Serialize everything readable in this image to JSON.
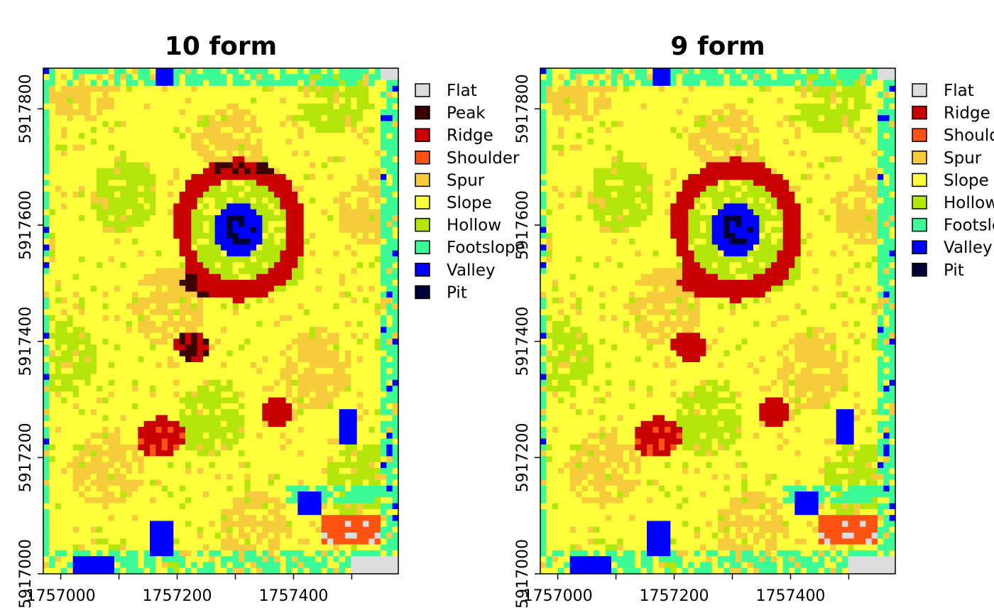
{
  "panels": [
    {
      "title": "10 form",
      "legend": [
        {
          "label": "Flat",
          "color": "#dcdcdc"
        },
        {
          "label": "Peak",
          "color": "#3d0000"
        },
        {
          "label": "Ridge",
          "color": "#c80000"
        },
        {
          "label": "Shoulder",
          "color": "#ff5314"
        },
        {
          "label": "Spur",
          "color": "#f7cc3c"
        },
        {
          "label": "Slope",
          "color": "#ffff3c"
        },
        {
          "label": "Hollow",
          "color": "#b4e60c"
        },
        {
          "label": "Footslope",
          "color": "#3cfa96"
        },
        {
          "label": "Valley",
          "color": "#0000ff"
        },
        {
          "label": "Pit",
          "color": "#000038"
        }
      ],
      "x_ticks": [
        "1757000",
        "1757200",
        "1757400"
      ],
      "y_ticks": [
        "5917000",
        "5917200",
        "5917400",
        "5917600",
        "5917800"
      ],
      "has_peak": true
    },
    {
      "title": "9 form",
      "legend": [
        {
          "label": "Flat",
          "color": "#dcdcdc"
        },
        {
          "label": "Ridge",
          "color": "#c80000"
        },
        {
          "label": "Shoulder",
          "color": "#ff5314"
        },
        {
          "label": "Spur",
          "color": "#f7cc3c"
        },
        {
          "label": "Slope",
          "color": "#ffff3c"
        },
        {
          "label": "Hollow",
          "color": "#b4e60c"
        },
        {
          "label": "Footslope",
          "color": "#3cfa96"
        },
        {
          "label": "Valley",
          "color": "#0000ff"
        },
        {
          "label": "Pit",
          "color": "#000038"
        }
      ],
      "x_ticks": [
        "1757000",
        "1757200",
        "1757400"
      ],
      "y_ticks": [
        "5917000",
        "5917200",
        "5917400",
        "5917600",
        "5917800"
      ],
      "has_peak": false
    }
  ],
  "axis_extent": {
    "x": [
      1756970,
      1757580
    ],
    "y": [
      5917000,
      5917870
    ]
  }
}
